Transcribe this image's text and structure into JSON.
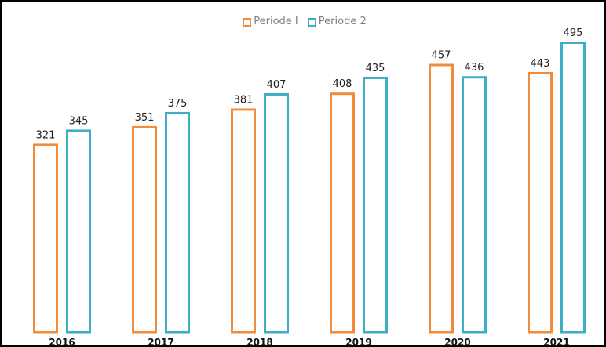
{
  "legend": {
    "periode1": "Periode I",
    "periode2": "Periode 2"
  },
  "colors": {
    "periode1": "#f28c3a",
    "periode2": "#3eaec4"
  },
  "chart_data": {
    "type": "bar",
    "categories": [
      "2016",
      "2017",
      "2018",
      "2019",
      "2020",
      "2021"
    ],
    "series": [
      {
        "name": "Periode I",
        "values": [
          321,
          351,
          381,
          408,
          457,
          443
        ]
      },
      {
        "name": "Periode 2",
        "values": [
          345,
          375,
          407,
          435,
          436,
          495
        ]
      }
    ],
    "ylim": [
      0,
      510
    ],
    "grid": false,
    "legend_position": "top-center"
  }
}
